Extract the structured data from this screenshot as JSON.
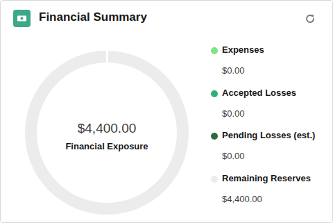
{
  "chart_data": {
    "type": "donut",
    "title": "Financial Summary",
    "categories": [
      "Expenses",
      "Accepted Losses",
      "Pending Losses (est.)",
      "Remaining Reserves"
    ],
    "values": [
      0,
      0,
      0,
      4400
    ],
    "value_labels": [
      "$0.00",
      "$0.00",
      "$0.00",
      "$4,400.00"
    ],
    "colors": [
      "#7ae582",
      "#2bb07f",
      "#2e6b3a",
      "#ececec"
    ],
    "annotations": [
      "$4,400.00",
      "Financial Exposure"
    ]
  }
}
